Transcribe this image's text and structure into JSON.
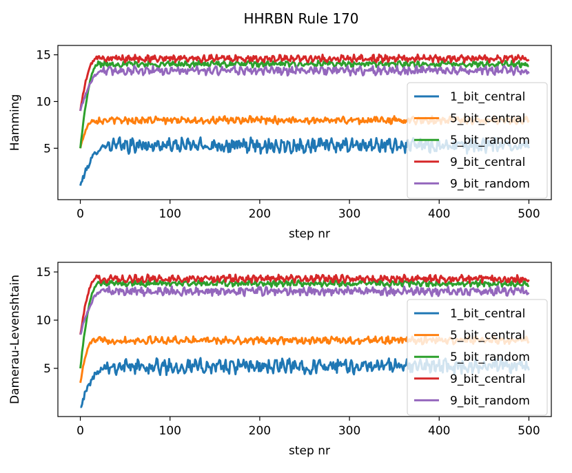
{
  "figure": {
    "title": "HHRBN Rule 170"
  },
  "chart_data": [
    {
      "type": "line",
      "xlabel": "step nr",
      "ylabel": "Hamming",
      "xlim": [
        -25,
        525
      ],
      "ylim": [
        -0.5,
        16
      ],
      "xticks": [
        0,
        100,
        200,
        300,
        400,
        500
      ],
      "yticks": [
        5,
        10,
        15
      ],
      "legend": "right",
      "grid": false,
      "series": [
        {
          "name": "1_bit_central",
          "color": "#1f77b4",
          "start": 1,
          "rise_to": 5.3,
          "rise_steps": 30,
          "mean": 5.3,
          "amp": 0.6,
          "end": 5.0
        },
        {
          "name": "5_bit_central",
          "color": "#ff7f0e",
          "start": 5,
          "rise_to": 8.0,
          "rise_steps": 15,
          "mean": 8.0,
          "amp": 0.3,
          "end": 8.0
        },
        {
          "name": "5_bit_random",
          "color": "#2ca02c",
          "start": 5,
          "rise_to": 14.0,
          "rise_steps": 20,
          "mean": 14.0,
          "amp": 0.25,
          "end": 13.8
        },
        {
          "name": "9_bit_central",
          "color": "#d62728",
          "start": 9,
          "rise_to": 14.6,
          "rise_steps": 18,
          "mean": 14.6,
          "amp": 0.3,
          "end": 14.5
        },
        {
          "name": "9_bit_random",
          "color": "#9467bd",
          "start": 9,
          "rise_to": 13.3,
          "rise_steps": 25,
          "mean": 13.3,
          "amp": 0.35,
          "end": 13.0
        }
      ]
    },
    {
      "type": "line",
      "xlabel": "step nr",
      "ylabel": "Damerau-Levenshtain",
      "xlim": [
        -25,
        525
      ],
      "ylim": [
        0,
        16
      ],
      "xticks": [
        0,
        100,
        200,
        300,
        400,
        500
      ],
      "yticks": [
        5,
        10,
        15
      ],
      "legend": "right",
      "grid": false,
      "series": [
        {
          "name": "1_bit_central",
          "color": "#1f77b4",
          "start": 1,
          "rise_to": 5.2,
          "rise_steps": 30,
          "mean": 5.2,
          "amp": 0.6,
          "end": 4.8
        },
        {
          "name": "5_bit_central",
          "color": "#ff7f0e",
          "start": 3.5,
          "rise_to": 7.9,
          "rise_steps": 15,
          "mean": 7.9,
          "amp": 0.3,
          "end": 7.8
        },
        {
          "name": "5_bit_random",
          "color": "#2ca02c",
          "start": 5,
          "rise_to": 13.8,
          "rise_steps": 20,
          "mean": 13.8,
          "amp": 0.25,
          "end": 13.6
        },
        {
          "name": "9_bit_central",
          "color": "#d62728",
          "start": 8.5,
          "rise_to": 14.3,
          "rise_steps": 18,
          "mean": 14.3,
          "amp": 0.3,
          "end": 14.2
        },
        {
          "name": "9_bit_random",
          "color": "#9467bd",
          "start": 8.5,
          "rise_to": 13.0,
          "rise_steps": 25,
          "mean": 13.0,
          "amp": 0.35,
          "end": 12.7
        }
      ]
    }
  ]
}
